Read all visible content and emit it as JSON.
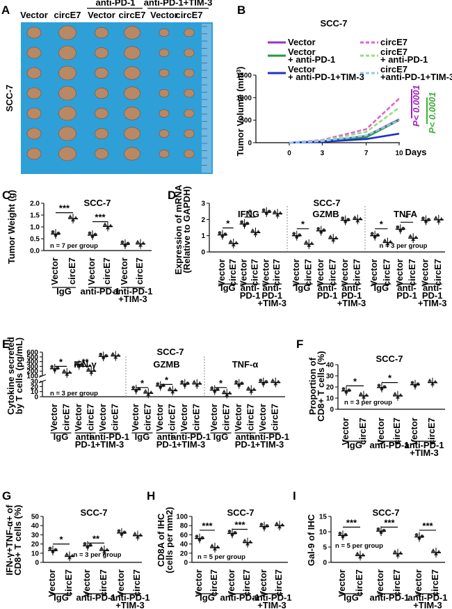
{
  "panel_letters": [
    "A",
    "B",
    "C",
    "D",
    "E",
    "F",
    "G",
    "H",
    "I"
  ],
  "photo": {
    "col_labels": [
      "Vector",
      "circE7",
      "Vector",
      "circE7",
      "Vector",
      "circE7"
    ],
    "group_labels": [
      "anti-PD-1",
      "anti-PD-1+TIM-3"
    ],
    "row_label": "SCC-7",
    "colors": {
      "background": "#2f9fd8",
      "tumor": "#b98864"
    }
  },
  "chart_data": [
    {
      "id": "B",
      "type": "line",
      "title": "SCC-7",
      "xlabel": "Days",
      "ylabel": "Tumor Volume (mm3)",
      "x": [
        0,
        3,
        7,
        10
      ],
      "xticks": [
        "0",
        "3",
        "7",
        "10"
      ],
      "ylim": [
        0,
        1500
      ],
      "yticks": [
        "0",
        "500",
        "1000",
        "1500"
      ],
      "series": [
        {
          "name": "Vector",
          "values": [
            0,
            30,
            150,
            520
          ],
          "color": "#9b30c8",
          "dash": false
        },
        {
          "name": "Vector + anti-PD-1",
          "values": [
            0,
            25,
            120,
            500
          ],
          "color": "#1f9e3a",
          "dash": false
        },
        {
          "name": "Vector + anti-PD-1+TIM-3",
          "values": [
            0,
            20,
            80,
            200
          ],
          "color": "#1f2fd0",
          "dash": false
        },
        {
          "name": "circE7",
          "values": [
            0,
            60,
            300,
            980
          ],
          "color": "#e35fd0",
          "dash": true
        },
        {
          "name": "circE7 + anti-PD-1",
          "values": [
            0,
            50,
            240,
            780
          ],
          "color": "#8fe07a",
          "dash": true
        },
        {
          "name": "circE7 +anti-PD-1+TIM-3",
          "values": [
            0,
            35,
            160,
            500
          ],
          "color": "#8cc8ee",
          "dash": true
        }
      ],
      "legend_labels": [
        "Vector",
        "Vector\n+ anti-PD-1",
        "Vector\n+ anti-PD-1+TIM-3",
        "circE7",
        "circE7\n+ anti-PD-1",
        "circE7\n+anti-PD-1+TIM-3"
      ],
      "annotations": [
        "P< 0.0001",
        "P< 0.0001"
      ]
    },
    {
      "id": "C",
      "type": "scatter",
      "title": "SCC-7",
      "ylabel": "Tumor Weight (g)",
      "ylim": [
        0,
        2
      ],
      "yticks": [
        "0.0",
        "0.5",
        "1.0",
        "1.5",
        "2.0"
      ],
      "categories": [
        "Vector",
        "circE7",
        "Vector",
        "circE7",
        "Vector",
        "circE7"
      ],
      "groups": [
        "IgG",
        "anti-PD-1",
        "anti-PD-1\n+TIM-3"
      ],
      "values": [
        0.7,
        1.35,
        0.65,
        1.02,
        0.27,
        0.28
      ],
      "sig": [
        "***",
        "***"
      ],
      "note": "n = 7 per group"
    },
    {
      "id": "D",
      "type": "scatter",
      "title": "SCC-7",
      "ylabel": "Expression of mRNA\n(Relative to GAPDH)",
      "ylim": [
        0,
        3
      ],
      "yticks": [
        "0",
        "1",
        "2",
        "3"
      ],
      "subtitles": [
        "IFNG",
        "GZMB",
        "TNFA"
      ],
      "categories": [
        "Vector",
        "circE7",
        "Vector",
        "circE7",
        "Vector",
        "circE7"
      ],
      "groups": [
        "IgG",
        "anti-\nPD-1",
        "anti-\nPD-1\n+TIM-3"
      ],
      "values": [
        [
          1.05,
          0.52,
          1.72,
          1.2,
          2.45,
          2.35
        ],
        [
          1.0,
          0.48,
          1.3,
          0.82,
          1.95,
          2.0
        ],
        [
          1.0,
          0.58,
          1.4,
          0.85,
          1.95,
          1.98
        ]
      ],
      "sig": [
        "*",
        "*",
        "*",
        "*",
        "*"
      ],
      "note": "n = 3 per group"
    },
    {
      "id": "E",
      "type": "scatter",
      "title": "SCC-7",
      "ylabel": "Cytokine secreted\nby T cells (pg/mL)",
      "yticks_top": [
        "100",
        "200",
        "300",
        "400",
        "500",
        "600"
      ],
      "yticks_bottom": [
        "0",
        "10",
        "20",
        "30"
      ],
      "subtitles": [
        "IFN-γ",
        "GZMB",
        "TNF-α"
      ],
      "categories": [
        "Vector",
        "circE7",
        "Vector",
        "circE7",
        "Vector",
        "circE7"
      ],
      "groups": [
        "IgG",
        "anti-\nPD-1",
        "anti-PD-1\n+TIM-3"
      ],
      "values": [
        [
          250,
          160,
          330,
          200,
          510,
          520
        ],
        [
          14,
          7,
          21,
          12,
          25,
          25
        ],
        [
          13,
          6,
          25,
          13,
          28,
          28
        ]
      ],
      "sig": [
        "*",
        "**",
        "*",
        "*",
        "*"
      ],
      "note": "n = 3 per group"
    },
    {
      "id": "F",
      "type": "scatter",
      "title": "SCC-7",
      "ylabel": "Proportion of\nCD8+ T cells (%)",
      "ylim": [
        0,
        40
      ],
      "yticks": [
        "0",
        "10",
        "20",
        "30",
        "40"
      ],
      "categories": [
        "Vector",
        "circE7",
        "Vector",
        "circE7",
        "Vector",
        "circE7"
      ],
      "groups": [
        "IgG",
        "anti-PD-1",
        "anti-PD-1\n+TIM-3"
      ],
      "values": [
        16.5,
        12,
        19.5,
        12,
        22,
        24
      ],
      "sig": [
        "*",
        "*"
      ],
      "note": "n = 3 per group"
    },
    {
      "id": "G",
      "type": "scatter",
      "title": "SCC-7",
      "ylabel": "IFN-γ+TNF-α+ of\nCD8+ T cells (%)",
      "ylim": [
        0,
        50
      ],
      "yticks": [
        "0",
        "10",
        "20",
        "30",
        "40",
        "50"
      ],
      "categories": [
        "Vector",
        "circE7",
        "Vector",
        "circE7",
        "Vector",
        "circE7"
      ],
      "groups": [
        "IgG",
        "anti-PD-1",
        "anti-PD-1\n+TIM-3"
      ],
      "values": [
        13,
        6.5,
        18,
        13,
        32,
        29
      ],
      "sig": [
        "*",
        "**"
      ],
      "note": "n = 3 per group"
    },
    {
      "id": "H",
      "type": "scatter",
      "title": "SCC-7",
      "ylabel": "CD8A of IHC\n(cells per mm2)",
      "ylim": [
        0,
        100
      ],
      "yticks": [
        "0",
        "20",
        "40",
        "60",
        "80",
        "100"
      ],
      "categories": [
        "Vector",
        "circE7",
        "Vector",
        "circE7",
        "Vector",
        "circE7"
      ],
      "groups": [
        "IgG",
        "anti-PD-1",
        "anti-PD-1\n+TIM-3"
      ],
      "values": [
        52,
        32,
        63,
        43,
        78,
        80
      ],
      "sig": [
        "***",
        "***"
      ],
      "note": "n = 5 per group"
    },
    {
      "id": "I",
      "type": "scatter",
      "title": "SCC-7",
      "ylabel": "Gal-9 of IHC",
      "ylim": [
        0,
        15
      ],
      "yticks": [
        "0",
        "5",
        "10",
        "15"
      ],
      "categories": [
        "Vector",
        "circE7",
        "Vector",
        "circE7",
        "Vector",
        "circE7"
      ],
      "groups": [
        "IgG",
        "anti-PD-1",
        "anti-PD-1\n+TIM-3"
      ],
      "values": [
        8.8,
        2.2,
        10.2,
        2.8,
        8.3,
        3.2
      ],
      "sig": [
        "***",
        "***",
        "***"
      ],
      "note": "n = 5 per group"
    }
  ]
}
